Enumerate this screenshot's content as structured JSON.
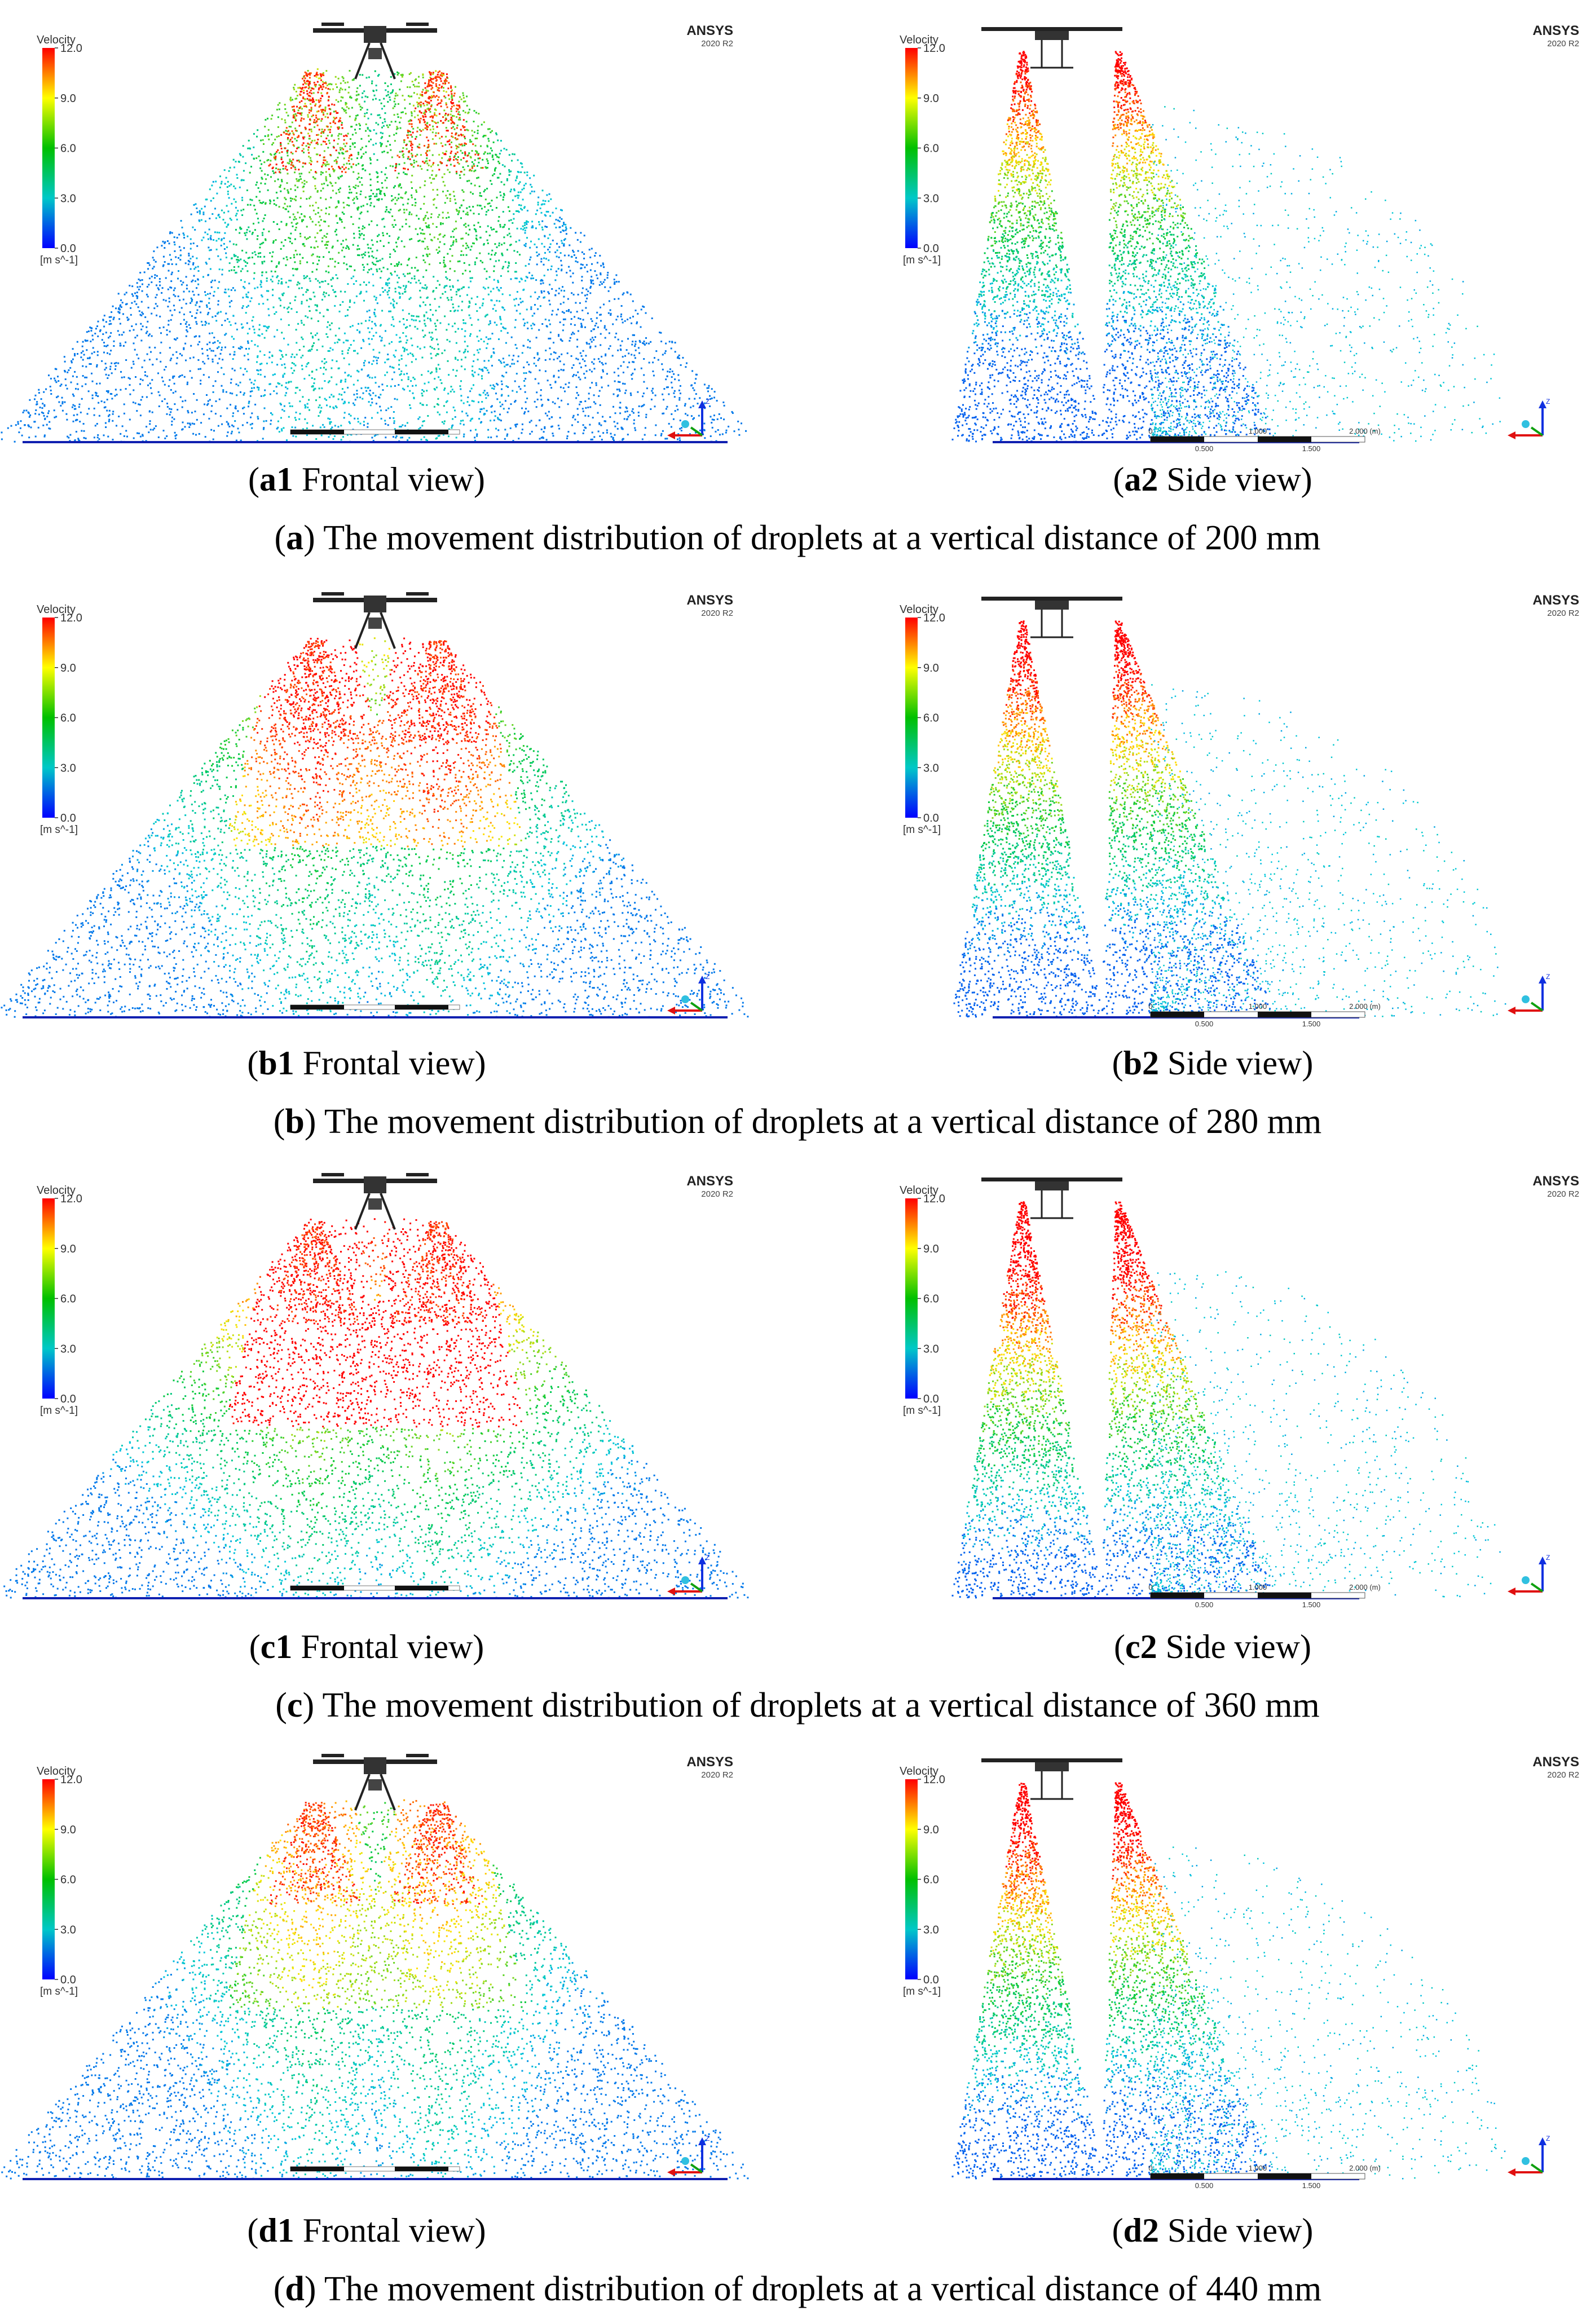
{
  "legend": {
    "title": "Velocity",
    "ticks": [
      "12.0",
      "9.0",
      "6.0",
      "3.0",
      "0.0"
    ],
    "unit": "[m s^-1]",
    "colors": [
      "#ff0000",
      "#ffff00",
      "#00c000",
      "#00c8c8",
      "#0000ff"
    ]
  },
  "brand": {
    "name": "ANSYS",
    "version": "2020 R2"
  },
  "axes_triad": {
    "z": "Z",
    "x": "X",
    "y": "Y"
  },
  "scale_bar_side": {
    "top": [
      "0",
      "1.000",
      "2.000 (m)"
    ],
    "bottom": [
      "0.500",
      "1.500"
    ]
  },
  "rows": [
    {
      "id": "a",
      "distance": "200 mm",
      "caption_prefix": "(",
      "caption_letter": "a",
      "caption_text": ") The movement distribution of droplets at a vertical distance of 200 mm",
      "left": {
        "label_bold": "a1",
        "label_text": " Frontal view"
      },
      "right": {
        "label_bold": "a2",
        "label_text": " Side view"
      }
    },
    {
      "id": "b",
      "distance": "280 mm",
      "caption_prefix": "(",
      "caption_letter": "b",
      "caption_text": ") The movement distribution of droplets at a vertical distance of 280 mm",
      "left": {
        "label_bold": "b1",
        "label_text": " Frontal view"
      },
      "right": {
        "label_bold": "b2",
        "label_text": " Side view"
      }
    },
    {
      "id": "c",
      "distance": "360 mm",
      "caption_prefix": "(",
      "caption_letter": "c",
      "caption_text": ") The movement distribution of droplets at a vertical distance of 360 mm",
      "left": {
        "label_bold": "c1",
        "label_text": " Frontal view"
      },
      "right": {
        "label_bold": "c2",
        "label_text": " Side view"
      }
    },
    {
      "id": "d",
      "distance": "440 mm",
      "caption_prefix": "(",
      "caption_letter": "d",
      "caption_text": ") The movement distribution of droplets at a vertical distance of 440 mm",
      "left": {
        "label_bold": "d1",
        "label_text": " Frontal view"
      },
      "right": {
        "label_bold": "d2",
        "label_text": " Side view"
      }
    }
  ]
}
